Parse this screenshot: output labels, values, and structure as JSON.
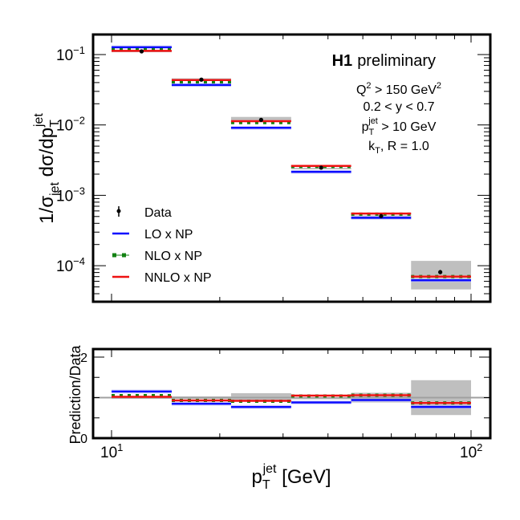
{
  "chart_data": [
    {
      "panel": "main",
      "type": "line",
      "title": "",
      "xlabel": "p_T^jet [GeV]",
      "ylabel": "1/σ_jet dσ/dp_T^jet",
      "ylabel_parts": {
        "pre": "1/σ",
        "sub1": "jet",
        "mid": " dσ/dp",
        "sub2": "T",
        "sup2": "jet"
      },
      "xscale": "log",
      "yscale": "log",
      "xlim": [
        9.0,
        115
      ],
      "ylim": [
        3e-05,
        0.2
      ],
      "x_ticks_major": [
        10,
        100
      ],
      "x_tick_labels_visible": false,
      "y_tick_labels": [
        {
          "value": 0.1,
          "base": "10",
          "exp": "−1"
        },
        {
          "value": 0.01,
          "base": "10",
          "exp": "−2"
        },
        {
          "value": 0.001,
          "base": "10",
          "exp": "−3"
        },
        {
          "value": 0.0001,
          "base": "10",
          "exp": "−4"
        }
      ],
      "bin_edges": [
        10,
        14.7,
        21.5,
        31.6,
        46.4,
        68.1,
        100
      ],
      "data": {
        "name": "Data",
        "values": [
          0.111,
          0.044,
          0.0118,
          0.00247,
          0.000507,
          8.1e-05
        ],
        "stat_err_low": [
          0.108,
          0.0425,
          0.0114,
          0.0024,
          0.000495,
          7.6e-05
        ],
        "stat_err_high": [
          0.114,
          0.0455,
          0.0122,
          0.00254,
          0.00052,
          8.7e-05
        ],
        "band_low": [
          0.108,
          0.042,
          0.0105,
          0.00235,
          0.00046,
          4.6e-05
        ],
        "band_high": [
          0.118,
          0.046,
          0.013,
          0.00265,
          0.00056,
          0.000117
        ]
      },
      "series": [
        {
          "name": "LO x NP",
          "color": "#0a0aff",
          "style": "solid",
          "values": [
            0.127,
            0.037,
            0.0091,
            0.00216,
            0.00048,
            6.2e-05
          ]
        },
        {
          "name": "NLO x NP",
          "color": "#128212",
          "style": "dotted",
          "values": [
            0.117,
            0.041,
            0.0108,
            0.00257,
            0.00054,
            7e-05
          ]
        },
        {
          "name": "NNLO x NP",
          "color": "#ee1111",
          "style": "solid",
          "values": [
            0.113,
            0.0435,
            0.0113,
            0.00262,
            0.00055,
            7e-05
          ]
        }
      ],
      "legend": {
        "placement": "lower-left",
        "entries": [
          "Data",
          "LO x NP",
          "NLO x NP",
          "NNLO x NP"
        ]
      },
      "annotations": {
        "experiment": "H1",
        "status": "preliminary",
        "line1": {
          "pre": "Q",
          "sup1": "2",
          "mid": " > 150 GeV",
          "sup2": "2"
        },
        "line2": "0.2 < y < 0.7",
        "line3": {
          "pre": "p",
          "sub": "T",
          "sup": "jet",
          "post": " > 10 GeV"
        },
        "line4": {
          "pre": "k",
          "sub": "T",
          "post": ", R = 1.0"
        }
      }
    },
    {
      "panel": "ratio",
      "type": "line",
      "ylabel": "Prediction/Data",
      "xlabel": "p_T^jet [GeV]",
      "xlabel_parts": {
        "pre": "p",
        "sub": "T",
        "sup": "jet",
        "post": " [GeV]"
      },
      "xscale": "log",
      "xlim": [
        9.0,
        115
      ],
      "ylim": [
        0,
        2.2
      ],
      "y_ticks": [
        0,
        2
      ],
      "y_tick_labels": [
        "0",
        "2"
      ],
      "x_tick_labels": [
        {
          "value": 10,
          "base": "10",
          "exp": "1"
        },
        {
          "value": 100,
          "base": "10",
          "exp": "2"
        }
      ],
      "reference_line": 1.0,
      "bin_edges": [
        10,
        14.7,
        21.5,
        31.6,
        46.4,
        68.1,
        100
      ],
      "data_band_low": [
        0.97,
        0.97,
        0.9,
        0.96,
        0.88,
        0.57
      ],
      "data_band_high": [
        1.03,
        1.03,
        1.11,
        1.05,
        1.12,
        1.43
      ],
      "series": [
        {
          "name": "LO x NP",
          "color": "#0a0aff",
          "values": [
            1.15,
            0.85,
            0.77,
            0.88,
            0.94,
            0.77
          ]
        },
        {
          "name": "NLO x NP",
          "color": "#128212",
          "values": [
            1.05,
            0.93,
            0.91,
            1.04,
            1.06,
            0.87
          ]
        },
        {
          "name": "NNLO x NP",
          "color": "#ee1111",
          "values": [
            1.02,
            0.93,
            0.92,
            1.05,
            1.06,
            0.87
          ]
        }
      ]
    }
  ],
  "colors": {
    "data": "#000000",
    "data_band": "#b4b4b4",
    "lo_band": "#c8c8f5",
    "reference": "#a0a0a0",
    "frame": "#000000"
  }
}
